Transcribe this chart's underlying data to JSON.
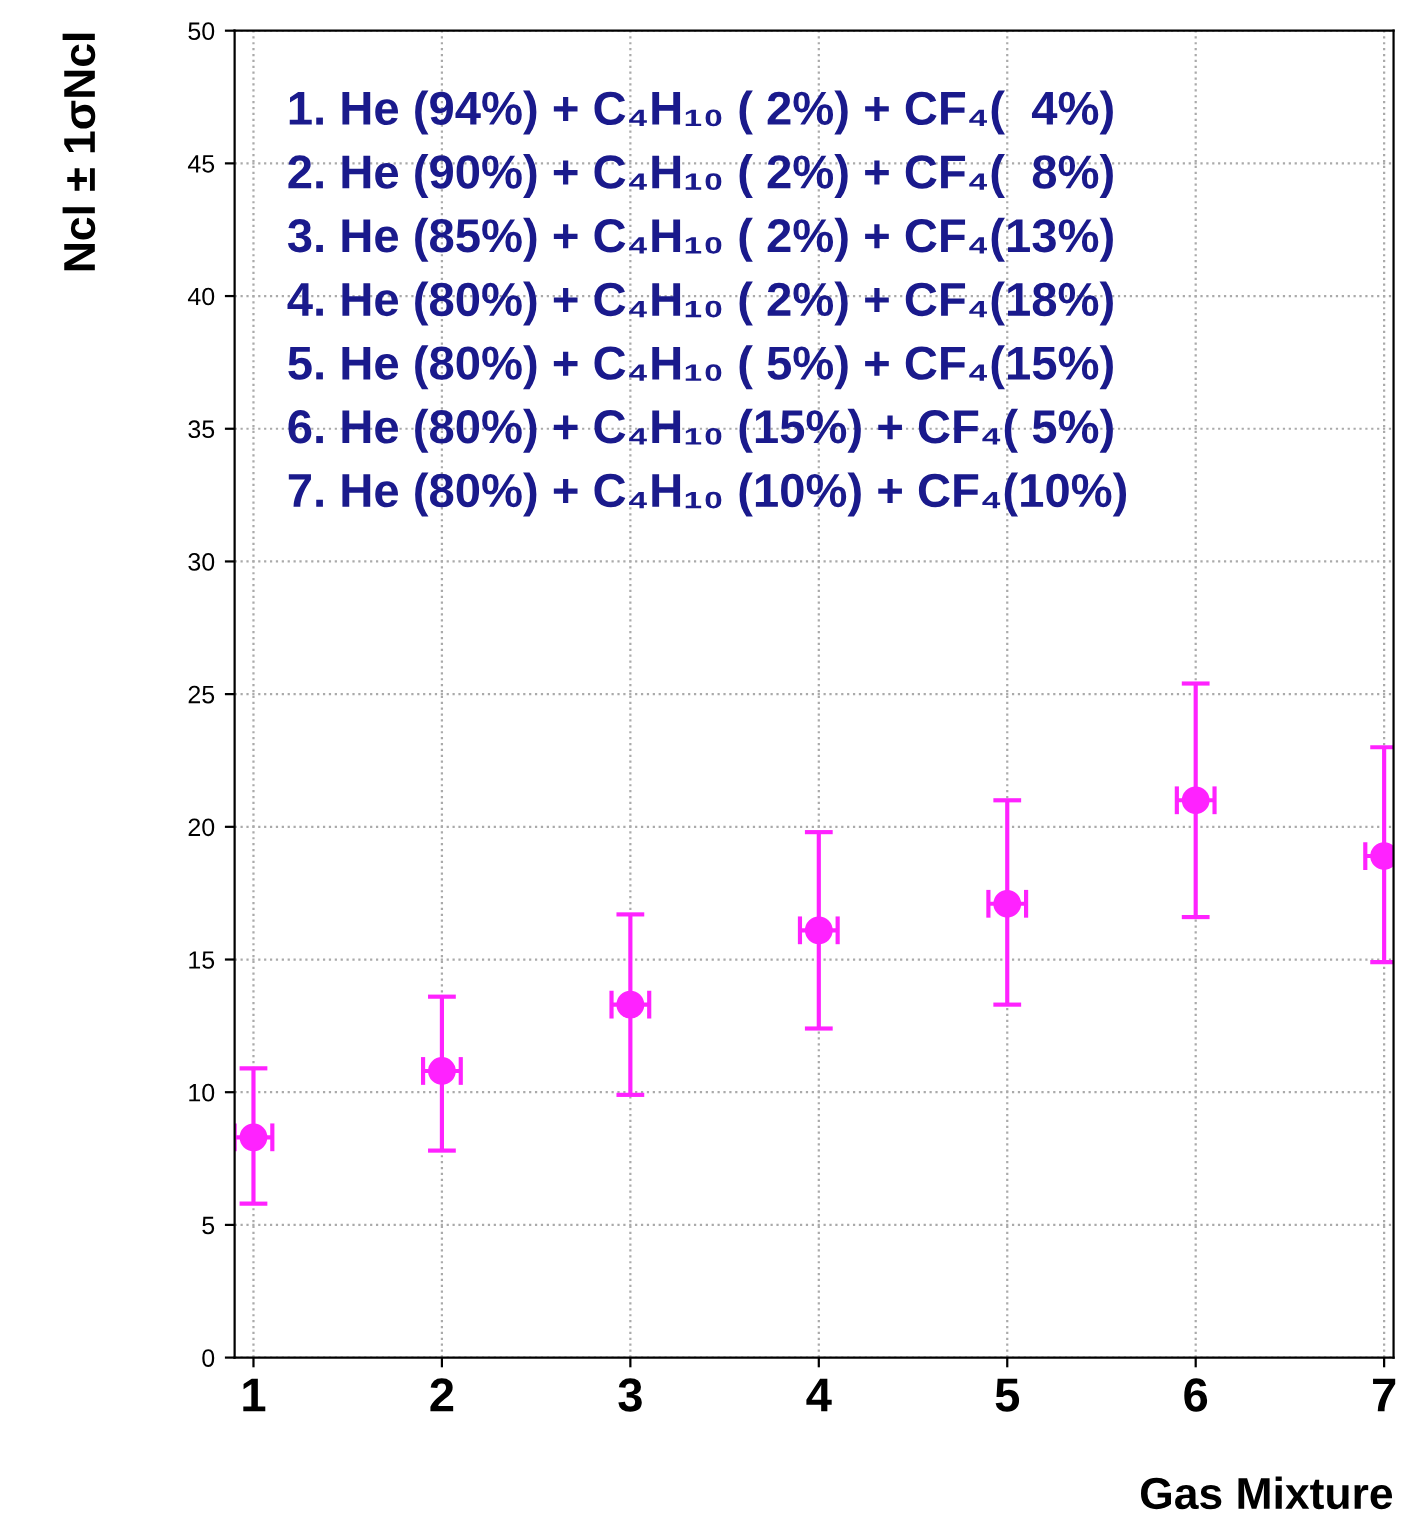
{
  "chart_data": {
    "type": "scatter",
    "xlabel": "Gas Mixture",
    "ylabel": "Ncl ± 1σNcl",
    "x": [
      1,
      2,
      3,
      4,
      5,
      6,
      7
    ],
    "series": [
      {
        "color": "#ff22ff",
        "values": [
          8.3,
          10.8,
          13.3,
          16.1,
          17.1,
          21.0,
          18.9
        ],
        "errors": [
          [
            5.8,
            10.9
          ],
          [
            7.8,
            13.6
          ],
          [
            9.9,
            16.7
          ],
          [
            12.4,
            19.8
          ],
          [
            13.3,
            21.0
          ],
          [
            16.6,
            25.4
          ],
          [
            14.9,
            23.0
          ]
        ],
        "xerrors": [
          0.1,
          0.1,
          0.1,
          0.1,
          0.1,
          0.1,
          0.1
        ]
      }
    ],
    "marker": "circle",
    "xlim": [
      0.9,
      7.05
    ],
    "xticks": [
      1,
      2,
      3,
      4,
      5,
      6,
      7
    ],
    "ylim": [
      0,
      50
    ],
    "yticks": [
      0,
      5,
      10,
      15,
      20,
      25,
      30,
      35,
      40,
      45,
      50
    ],
    "grid": true,
    "annotations": [
      "1. He (94%) + C₄H₁₀ ( 2%) + CF₄(  4%)",
      "2. He (90%) + C₄H₁₀ ( 2%) + CF₄(  8%)",
      "3. He (85%) + C₄H₁₀ ( 2%) + CF₄(13%)",
      "4. He (80%) + C₄H₁₀ ( 2%) + CF₄(18%)",
      "5. He (80%) + C₄H₁₀ ( 5%) + CF₄(15%)",
      "6. He (80%) + C₄H₁₀ (15%) + CF₄( 5%)",
      "7. He (80%) + C₄H₁₀ (10%) + CF₄(10%)"
    ]
  }
}
